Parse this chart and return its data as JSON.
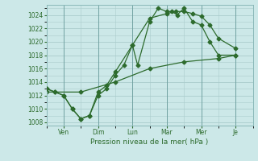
{
  "ylabel": "Pression niveau de la mer( hPa )",
  "ylim": [
    1007.5,
    1025.5
  ],
  "yticks": [
    1008,
    1010,
    1012,
    1014,
    1016,
    1018,
    1020,
    1022,
    1024
  ],
  "x_labels": [
    "Ven",
    "Dim",
    "Lun",
    "Mar",
    "Mer",
    "Je"
  ],
  "x_positions": [
    1,
    3,
    5,
    7,
    9,
    11
  ],
  "xlim": [
    0,
    12
  ],
  "bg_color": "#cce8e8",
  "grid_color": "#aacccc",
  "line_color": "#2d6b2d",
  "line1": {
    "x": [
      0.0,
      0.5,
      1.0,
      1.5,
      2.0,
      2.5,
      3.0,
      3.5,
      4.0,
      4.5,
      5.0,
      5.3,
      6.0,
      6.5,
      7.0,
      7.3,
      7.6,
      8.0,
      8.5,
      9.0,
      9.5,
      10.0,
      11.0
    ],
    "y": [
      1013,
      1012.5,
      1012,
      1010,
      1008.5,
      1009,
      1012,
      1013,
      1015,
      1016.5,
      1019.5,
      1016.5,
      1023,
      1025,
      1024.5,
      1024.5,
      1024,
      1025,
      1023,
      1022.5,
      1020,
      1018,
      1018
    ]
  },
  "line2": {
    "x": [
      0.0,
      0.5,
      1.0,
      1.5,
      2.0,
      2.5,
      3.0,
      3.5,
      4.0,
      5.0,
      6.0,
      7.0,
      7.5,
      8.0,
      8.5,
      9.0,
      9.5,
      10.0,
      11.0
    ],
    "y": [
      1013,
      1012.5,
      1012,
      1010,
      1008.5,
      1009,
      1012.5,
      1013.5,
      1015.5,
      1019.5,
      1023.5,
      1024.2,
      1024.5,
      1024.5,
      1024.2,
      1023.8,
      1022.5,
      1020.5,
      1019
    ]
  },
  "line3": {
    "x": [
      0.0,
      2.0,
      4.0,
      6.0,
      8.0,
      10.0,
      11.0
    ],
    "y": [
      1012.5,
      1012.5,
      1014,
      1016,
      1017,
      1017.5,
      1018
    ]
  }
}
